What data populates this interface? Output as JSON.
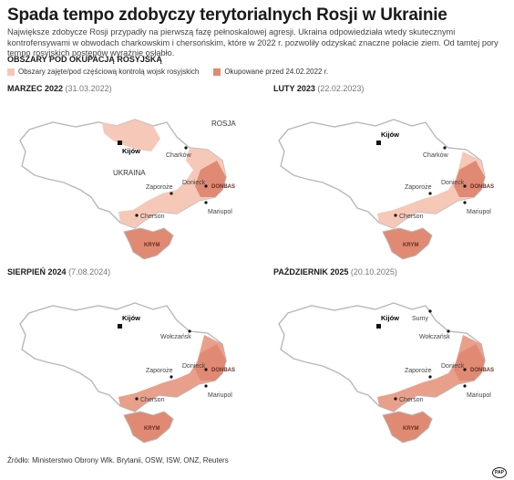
{
  "title": "Spada tempo zdobyczy terytorialnych Rosji w Ukrainie",
  "lead": "Największe zdobycze Rosji przypadły na pierwszą fazę pełnoskalowej agresji. Ukraina odpowiedziała wtedy skutecznymi kontrofensywami w obwodach charkowskim i chersońskim, które w 2022 r. pozwoliły odzyskać znaczne połacie ziem. Od tamtej pory tempo rosyjskich postępów wyraźnie osłabło.",
  "section": "OBSZARY POD OKUPACJĄ ROSYJSKĄ",
  "legend": {
    "light": "Obszary zajęte/pod częściową kontrolą wojsk rosyjskich",
    "dark": "Okupowane przed 24.02.2022 r.",
    "colors": {
      "light": "#f5c8b8",
      "dark": "#e08a73",
      "land": "#ffffff",
      "border": "#b8b8b8"
    }
  },
  "panels": [
    {
      "title": "MARZEC 2022",
      "date": "(31.03.2022)"
    },
    {
      "title": "LUTY 2023",
      "date": "(22.02.2023)"
    },
    {
      "title": "SIERPIEŃ 2024",
      "date": "(7.08.2024)"
    },
    {
      "title": "PAŹDZIERNIK 2025",
      "date": "(20.10.2025)"
    }
  ],
  "places": {
    "kyiv": "Kijów",
    "kharkiv": "Charków",
    "zaporizhzhia": "Zaporoże",
    "donetsk": "Donieck",
    "donbas": "DONBAS",
    "kherson": "Cherson",
    "mariupol": "Mariupol",
    "crimea": "KRYM",
    "russia": "ROSJA",
    "ukraine": "UKRAINA",
    "vovchansk": "Wołczańsk",
    "sumy": "Sumy"
  },
  "source": "Źródło: Ministerstwo Obrony Wlk. Brytanii, OSW, ISW, ONZ, Reuters",
  "logo": "PAP"
}
